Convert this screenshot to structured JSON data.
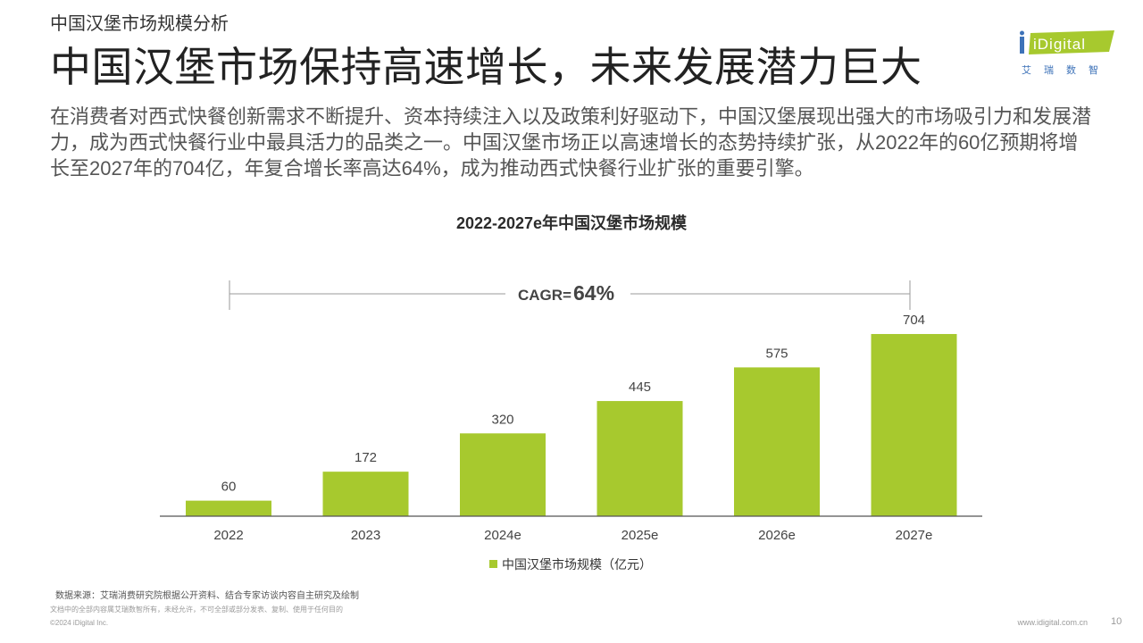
{
  "header": {
    "section_label": "中国汉堡市场规模分析",
    "headline": "中国汉堡市场保持高速增长，未来发展潜力巨大"
  },
  "logo": {
    "brand": "iDigital",
    "cn": "艾瑞数智",
    "colors": {
      "green": "#a7c92e",
      "blue": "#3d72b8"
    }
  },
  "summary": "在消费者对西式快餐创新需求不断提升、资本持续注入以及政策利好驱动下，中国汉堡展现出强大的市场吸引力和发展潜力，成为西式快餐行业中最具活力的品类之一。中国汉堡市场正以高速增长的态势持续扩张，从2022年的60亿预期将增长至2027年的704亿，年复合增长率高达64%，成为推动西式快餐行业扩张的重要引擎。",
  "chart_data": {
    "type": "bar",
    "title": "2022-2027e年中国汉堡市场规模",
    "categories": [
      "2022",
      "2023",
      "2024e",
      "2025e",
      "2026e",
      "2027e"
    ],
    "series": [
      {
        "name": "中国汉堡市场规模（亿元）",
        "values": [
          60,
          172,
          320,
          445,
          575,
          704
        ]
      }
    ],
    "ylim": [
      0,
      780
    ],
    "bar_color": "#a7c92e",
    "annotation": {
      "label": "CAGR=",
      "value": "64%"
    },
    "legend_position": "bottom-center"
  },
  "footer": {
    "source": "数据来源：艾瑞消费研究院根据公开资料、结合专家访谈内容自主研究及绘制",
    "rights": "文档中的全部内容属艾瑞数智所有，未经允许，不可全部或部分发表、复制、使用于任何目的",
    "copyright": "©2024 iDigital Inc.",
    "website": "www.idigital.com.cn",
    "page_number": "10"
  }
}
